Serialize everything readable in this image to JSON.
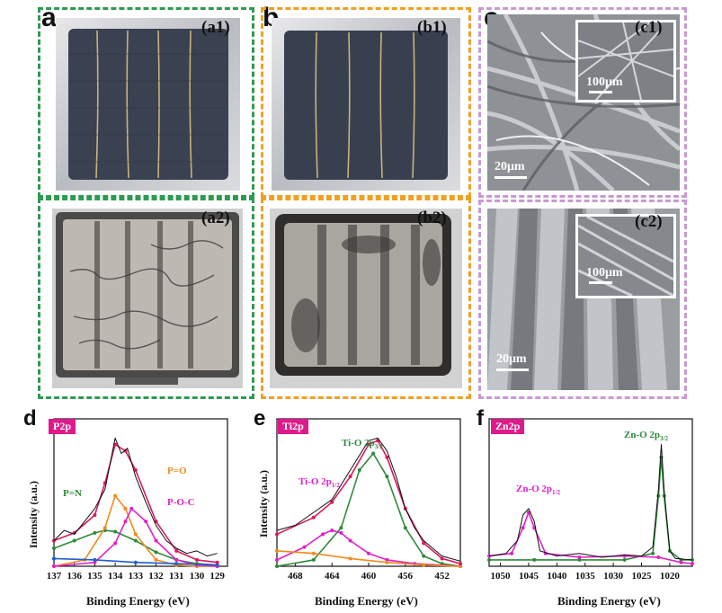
{
  "panels": {
    "a": {
      "letter": "a",
      "top_label": "(a1)",
      "bottom_label": "(a2)"
    },
    "b": {
      "letter": "b",
      "top_label": "(b1)",
      "bottom_label": "(b2)"
    },
    "c": {
      "letter": "c",
      "top_label": "(c1)",
      "bottom_label": "(c2)",
      "top_scale_main": "20μm",
      "top_scale_inset": "100μm",
      "bottom_scale_main": "20μm",
      "bottom_scale_inset": "100μm"
    }
  },
  "colors": {
    "green_frame": "#2e9a52",
    "orange_frame": "#f0a020",
    "pink_frame": "#c89ad0",
    "tag": "#e0198a"
  },
  "chart_data": [
    {
      "panel": "d",
      "type": "line",
      "tag": "P2p",
      "xlabel": "Binding Energy (eV)",
      "ylabel": "Intensity (a.u.)",
      "xlim": [
        137,
        128.5
      ],
      "x_reversed": true,
      "xticks": [
        137,
        136,
        135,
        134,
        133,
        132,
        131,
        130,
        129
      ],
      "annotations": [
        "P=O",
        "P=N",
        "P-O-C"
      ],
      "series": [
        {
          "name": "P=N",
          "color": "#2e8b3a",
          "x": [
            137,
            136,
            135,
            134.5,
            134,
            133,
            132,
            131,
            130,
            129
          ],
          "y": [
            0.14,
            0.2,
            0.26,
            0.28,
            0.27,
            0.2,
            0.11,
            0.05,
            0.02,
            0.01
          ]
        },
        {
          "name": "P=O",
          "color": "#f08a1c",
          "x": [
            137,
            135.5,
            134.5,
            134,
            133.5,
            133,
            132,
            131,
            130,
            129
          ],
          "y": [
            0.0,
            0.05,
            0.3,
            0.55,
            0.45,
            0.25,
            0.05,
            0.01,
            0.0,
            0.0
          ]
        },
        {
          "name": "P-O-C",
          "color": "#e020c8",
          "x": [
            137,
            135,
            134,
            133.5,
            133.2,
            132.5,
            132,
            131,
            130,
            129
          ],
          "y": [
            0.0,
            0.03,
            0.18,
            0.35,
            0.45,
            0.35,
            0.2,
            0.05,
            0.01,
            0.0
          ]
        },
        {
          "name": "",
          "color": "#1e5fd0",
          "x": [
            137,
            135,
            133,
            131,
            129
          ],
          "y": [
            0.06,
            0.05,
            0.03,
            0.02,
            0.01
          ]
        },
        {
          "name": "",
          "color": "#d81b60",
          "x": [
            137,
            136,
            135,
            134.5,
            134,
            133.5,
            133,
            132,
            131,
            130,
            129
          ],
          "y": [
            0.2,
            0.26,
            0.4,
            0.65,
            0.95,
            0.9,
            0.75,
            0.35,
            0.12,
            0.05,
            0.03
          ]
        },
        {
          "name": "",
          "color": "#111111",
          "x": [
            137,
            136.5,
            136,
            135.5,
            135,
            134.5,
            134,
            133.7,
            133.4,
            133,
            132.5,
            132,
            131.5,
            131,
            130.5,
            130,
            129.5,
            129
          ],
          "y": [
            0.2,
            0.28,
            0.25,
            0.35,
            0.45,
            0.6,
            1.0,
            0.88,
            0.92,
            0.7,
            0.5,
            0.32,
            0.2,
            0.14,
            0.1,
            0.12,
            0.08,
            0.1
          ]
        }
      ]
    },
    {
      "panel": "e",
      "type": "line",
      "tag": "Ti2p",
      "xlabel": "Binding Energy (eV)",
      "ylabel": "Intensity (a.u.)",
      "xlim": [
        470,
        450
      ],
      "x_reversed": true,
      "xticks": [
        468,
        464,
        460,
        456,
        452
      ],
      "annotations": [
        "Ti-O 2p3/2",
        "Ti-O 2p1/2"
      ],
      "series": [
        {
          "name": "Ti-O 2p3/2",
          "color": "#2e8b3a",
          "x": [
            470,
            466,
            463,
            461,
            459.5,
            458,
            456,
            454,
            452,
            450
          ],
          "y": [
            0.0,
            0.05,
            0.3,
            0.75,
            0.88,
            0.7,
            0.3,
            0.08,
            0.02,
            0.0
          ]
        },
        {
          "name": "Ti-O 2p1/2",
          "color": "#e020c8",
          "x": [
            470,
            467,
            465,
            464,
            463,
            462,
            460,
            458,
            455,
            450
          ],
          "y": [
            0.05,
            0.15,
            0.25,
            0.28,
            0.26,
            0.2,
            0.1,
            0.05,
            0.02,
            0.0
          ]
        },
        {
          "name": "",
          "color": "#f08a1c",
          "x": [
            470,
            466,
            462,
            458,
            454,
            450
          ],
          "y": [
            0.12,
            0.1,
            0.06,
            0.03,
            0.01,
            0.0
          ]
        },
        {
          "name": "",
          "color": "#d81b60",
          "x": [
            470,
            466,
            464,
            462,
            460,
            459,
            458,
            456,
            454,
            452,
            450
          ],
          "y": [
            0.25,
            0.38,
            0.5,
            0.7,
            0.95,
            0.98,
            0.85,
            0.45,
            0.18,
            0.06,
            0.02
          ]
        },
        {
          "name": "",
          "color": "#111111",
          "x": [
            470,
            468,
            466,
            464,
            462,
            460,
            459,
            458,
            457,
            456,
            455,
            454,
            452,
            450
          ],
          "y": [
            0.28,
            0.32,
            0.42,
            0.52,
            0.75,
            0.98,
            1.0,
            0.9,
            0.7,
            0.45,
            0.3,
            0.2,
            0.08,
            0.04
          ]
        }
      ]
    },
    {
      "panel": "f",
      "type": "line",
      "tag": "Zn2p",
      "xlabel": "Binding Energy (eV)",
      "ylabel": "",
      "xlim": [
        1052,
        1016
      ],
      "x_reversed": true,
      "xticks": [
        1050,
        1045,
        1040,
        1035,
        1030,
        1025,
        1020
      ],
      "annotations": [
        "Zn-O 2p1/2",
        "Zn-O 2p3/2"
      ],
      "series": [
        {
          "name": "",
          "color": "#2e8b3a",
          "x": [
            1052,
            1044,
            1036,
            1028,
            1023,
            1022,
            1021.5,
            1021,
            1020,
            1018,
            1016
          ],
          "y": [
            0.05,
            0.05,
            0.05,
            0.05,
            0.1,
            0.55,
            0.85,
            0.55,
            0.12,
            0.05,
            0.05
          ]
        },
        {
          "name": "",
          "color": "#e020c8",
          "x": [
            1052,
            1048,
            1046,
            1045,
            1044,
            1042,
            1036,
            1028,
            1022,
            1018,
            1016
          ],
          "y": [
            0.08,
            0.1,
            0.3,
            0.42,
            0.3,
            0.1,
            0.07,
            0.08,
            0.07,
            0.03,
            0.02
          ]
        },
        {
          "name": "",
          "color": "#111111",
          "x": [
            1052,
            1049,
            1047,
            1046,
            1045,
            1044,
            1043,
            1040,
            1036,
            1032,
            1028,
            1025,
            1023,
            1022,
            1021.5,
            1021,
            1020,
            1019,
            1016
          ],
          "y": [
            0.08,
            0.1,
            0.2,
            0.4,
            0.45,
            0.35,
            0.12,
            0.08,
            0.1,
            0.07,
            0.09,
            0.08,
            0.15,
            0.6,
            0.95,
            0.6,
            0.12,
            0.06,
            0.05
          ]
        }
      ]
    }
  ],
  "text": {
    "d": {
      "letter": "d",
      "tag": "P2p",
      "ylabel": "Intensity (a.u.)",
      "xlabel": "Binding Energy (eV)",
      "po": "P=O",
      "pn": "P=N",
      "poc": "P-O-C"
    },
    "e": {
      "letter": "e",
      "tag": "Ti2p",
      "ylabel": "Intensity (a.u.)",
      "xlabel": "Binding Energy (eV)",
      "p32": "Ti-O 2p",
      "p32sub": "3/2",
      "p12": "Ti-O 2p",
      "p12sub": "1/2"
    },
    "f": {
      "letter": "f",
      "tag": "Zn2p",
      "xlabel": "Binding Energy (eV)",
      "p12": "Zn-O 2p",
      "p12sub": "1/2",
      "p32": "Zn-O 2p",
      "p32sub": "3/2"
    }
  }
}
